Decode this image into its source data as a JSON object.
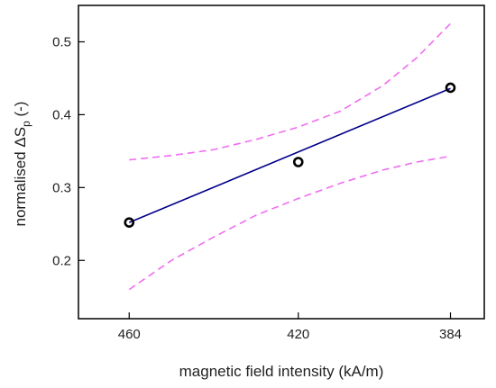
{
  "chart_data": {
    "type": "scatter",
    "xlabel": "magnetic field intensity (kA/m)",
    "ylabel": {
      "prefix": "normalised ",
      "symbol": "ΔS",
      "subscript": "p",
      "suffix": " (-)"
    },
    "x_ticks": [
      460,
      420,
      384
    ],
    "y_ticks": [
      0.2,
      0.3,
      0.4,
      0.5
    ],
    "y_tick_labels": [
      "0.2",
      "0.3",
      "0.4",
      "0.5"
    ],
    "xlim": [
      472,
      376
    ],
    "x_reversed": true,
    "ylim": [
      0.12,
      0.55
    ],
    "grid": false,
    "series": [
      {
        "kind": "points",
        "x": [
          460,
          420,
          384
        ],
        "y": [
          0.252,
          0.335,
          0.437
        ],
        "color": "#000000"
      },
      {
        "kind": "fit-line",
        "x": [
          460,
          384
        ],
        "y": [
          0.252,
          0.436
        ],
        "color": "#00008b"
      },
      {
        "kind": "confidence-band-upper",
        "x": [
          460,
          450,
          440,
          430,
          420,
          410,
          400,
          392,
          384
        ],
        "y": [
          0.338,
          0.344,
          0.352,
          0.366,
          0.383,
          0.405,
          0.44,
          0.478,
          0.525
        ],
        "color": "#f06ef0",
        "dashed": true
      },
      {
        "kind": "confidence-band-lower",
        "x": [
          460,
          450,
          440,
          430,
          420,
          410,
          400,
          392,
          384
        ],
        "y": [
          0.16,
          0.2,
          0.232,
          0.262,
          0.285,
          0.306,
          0.324,
          0.335,
          0.343
        ],
        "color": "#f06ef0",
        "dashed": true
      }
    ]
  }
}
